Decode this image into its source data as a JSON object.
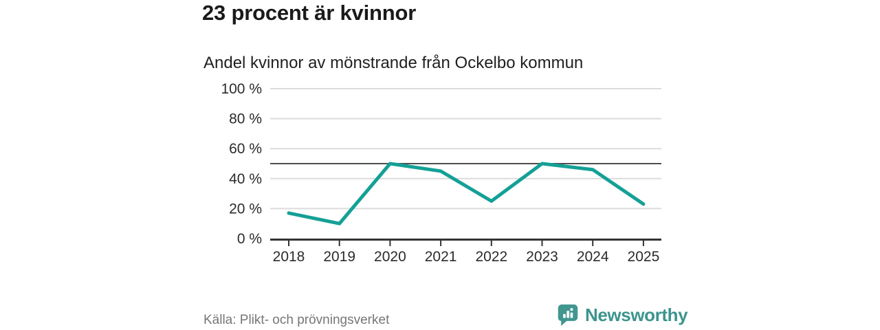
{
  "header": {
    "title": "23 procent är kvinnor",
    "subtitle": "Andel kvinnor av mönstrande från Ockelbo kommun"
  },
  "chart_data": {
    "type": "line",
    "title": "Andel kvinnor av mönstrande från Ockelbo kommun",
    "x": [
      "2018",
      "2019",
      "2020",
      "2021",
      "2022",
      "2023",
      "2024",
      "2025"
    ],
    "values": [
      17,
      10,
      50,
      45,
      25,
      50,
      46,
      23
    ],
    "unit": "%",
    "xlabel": "",
    "ylabel": "",
    "ylim": [
      0,
      100
    ],
    "ytick_values": [
      0,
      20,
      40,
      60,
      80,
      100
    ],
    "ytick_labels": [
      "0 %",
      "20 %",
      "40 %",
      "60 %",
      "80 %",
      "100 %"
    ],
    "reference_line_y": 50,
    "grid": true,
    "legend": "none"
  },
  "footer": {
    "source": "Källa: Plikt- och prövningsverket",
    "brand": "Newsworthy",
    "logo_icon": "speech-bubble-bar-chart"
  },
  "colors": {
    "background": "#ffffff",
    "line": "#14a096",
    "reference_line": "#4d4d4d",
    "gridline": "#dcdcdc",
    "axis": "#333333",
    "tick_label": "#2b2b2b",
    "title_text": "#1a1a1a",
    "source_text": "#767676",
    "brand_teal": "#3c948e"
  }
}
